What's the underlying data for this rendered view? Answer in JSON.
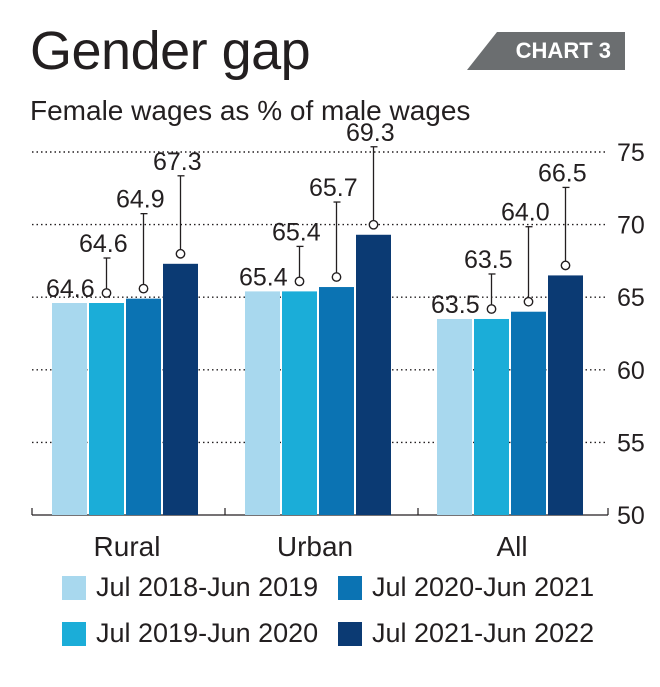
{
  "title": "Gender gap",
  "tag": "CHART 3",
  "subtitle": "Female wages as % of male wages",
  "colors": {
    "series": [
      "#a8d8ee",
      "#1badd8",
      "#0b73b3",
      "#0b3a73"
    ],
    "gridline": "#231f20",
    "errorbar": "#231f20",
    "tag_bg": "#6b6e70"
  },
  "chart_data": {
    "type": "bar",
    "categories": [
      "Rural",
      "Urban",
      "All"
    ],
    "series": [
      {
        "name": "Jul 2018-Jun 2019",
        "values": [
          64.6,
          65.4,
          63.5
        ],
        "labels": [
          "64.6",
          "65.4",
          "63.5"
        ]
      },
      {
        "name": "Jul 2019-Jun 2020",
        "values": [
          64.6,
          65.4,
          63.5
        ],
        "labels": [
          "64.6",
          "65.4",
          "63.5"
        ]
      },
      {
        "name": "Jul 2020-Jun 2021",
        "values": [
          64.9,
          65.7,
          64.0
        ],
        "labels": [
          "64.9",
          "65.7",
          "64.0"
        ]
      },
      {
        "name": "Jul 2021-Jun 2022",
        "values": [
          67.3,
          69.3,
          66.5
        ],
        "labels": [
          "67.3",
          "69.3",
          "66.5"
        ]
      }
    ],
    "ylim": [
      50,
      75
    ],
    "yticks": [
      "50",
      "55",
      "60",
      "65",
      "70",
      "75"
    ],
    "grid": true,
    "axis_side": "right",
    "legend_position": "bottom"
  }
}
